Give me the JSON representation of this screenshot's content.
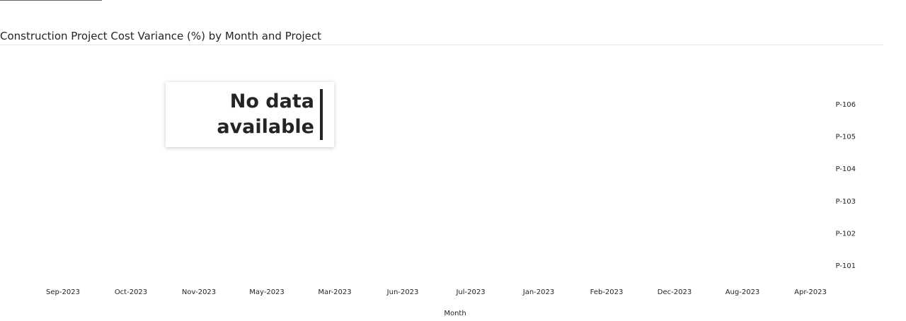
{
  "visual": {
    "title": "Construction Project Cost Variance (%) by Month and Project",
    "no_data_message": "No data available"
  },
  "chart_data": {
    "type": "heatmap",
    "title": "Construction Project Cost Variance (%) by Month and Project",
    "xlabel": "Month",
    "ylabel": "",
    "x_categories": [
      "Sep-2023",
      "Oct-2023",
      "Nov-2023",
      "May-2023",
      "Mar-2023",
      "Jun-2023",
      "Jul-2023",
      "Jan-2023",
      "Feb-2023",
      "Dec-2023",
      "Aug-2023",
      "Apr-2023"
    ],
    "y_categories": [
      "P-106",
      "P-105",
      "P-104",
      "P-103",
      "P-102",
      "P-101"
    ],
    "values": [],
    "y_axis_position": "right",
    "grid": false,
    "empty_state": "No data available"
  },
  "colors": {
    "text": "#252423",
    "rule": "#e5e5e5",
    "card_background": "#ffffff"
  }
}
